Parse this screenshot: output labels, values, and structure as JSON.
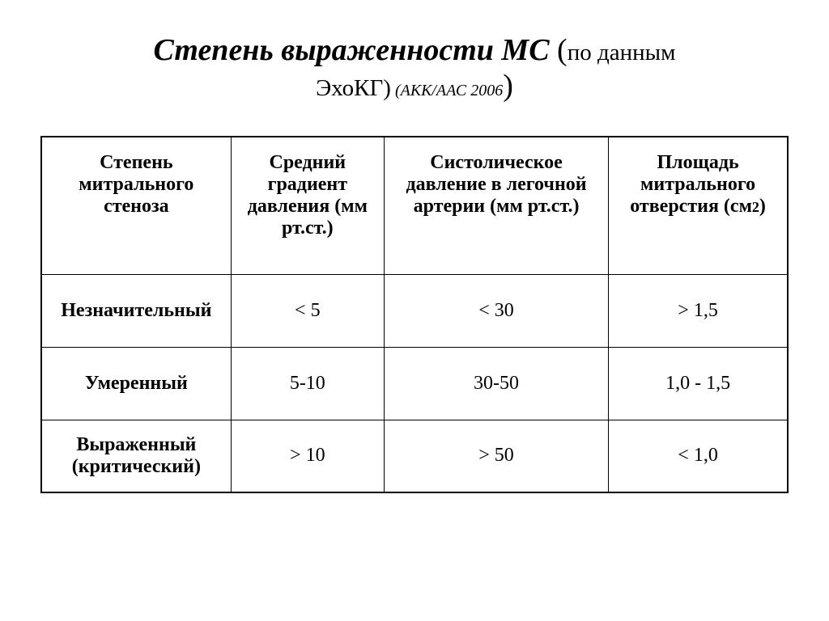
{
  "title": {
    "main": "Степень выраженности МС",
    "paren_open": " (",
    "sub1_a": "по данным",
    "sub1_b": "ЭхоКГ)",
    "sub2": " (АКК/ААС 2006",
    "paren_close": ")"
  },
  "table": {
    "headers": {
      "col1": "Степень митрального стеноза",
      "col2": "Средний градиент давления (мм рт.ст.)",
      "col3": "Систолическое давление в легочной артерии (мм рт.ст.)",
      "col4_a": "Площадь митрального отверстия (см",
      "col4_b": "2",
      "col4_c": ")"
    },
    "rows": [
      {
        "label": "Незначительный",
        "c2": "< 5",
        "c3": "< 30",
        "c4": "> 1,5"
      },
      {
        "label": "Умеренный",
        "c2": "5-10",
        "c3": "30-50",
        "c4": "1,0 - 1,5"
      },
      {
        "label": "Выраженный (критический)",
        "c2": "> 10",
        "c3": "> 50",
        "c4": "< 1,0"
      }
    ]
  },
  "style": {
    "background_color": "#ffffff",
    "text_color": "#000000",
    "border_color": "#000000",
    "title_fontsize_main": 38,
    "title_fontsize_sub1": 29,
    "title_fontsize_sub2": 20,
    "cell_fontsize": 24,
    "font_family": "Times New Roman"
  }
}
